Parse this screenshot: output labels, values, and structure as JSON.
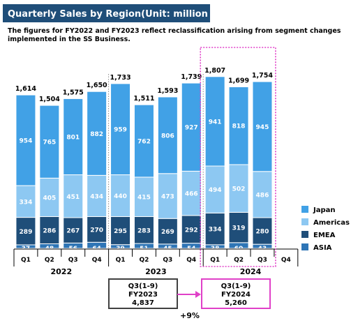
{
  "header": {
    "title": "Quarterly Sales by Region(Unit: million yen)",
    "note_line1": "The figures for FY2022 and FY2023 reflect reclassification arising from segment changes",
    "note_line2": "implemented in the SS Business."
  },
  "chart_data": {
    "type": "bar",
    "stacked": true,
    "title": "Quarterly Sales by Region(Unit: million yen)",
    "categories": [
      "Q1",
      "Q2",
      "Q3",
      "Q4",
      "Q1",
      "Q2",
      "Q3",
      "Q4",
      "Q1",
      "Q2",
      "Q3",
      "Q4"
    ],
    "years": [
      {
        "label": "2022",
        "start": 0,
        "end": 3
      },
      {
        "label": "2023",
        "start": 4,
        "end": 7
      },
      {
        "label": "2024",
        "start": 8,
        "end": 11
      }
    ],
    "totals": [
      1614,
      1504,
      1575,
      1650,
      1733,
      1511,
      1593,
      1739,
      1807,
      1699,
      1754,
      null
    ],
    "total_labels": [
      "1,614",
      "1,504",
      "1,575",
      "1,650",
      "1,733",
      "1,511",
      "1,593",
      "1,739",
      "1,807",
      "1,699",
      "1,754",
      ""
    ],
    "series": [
      {
        "name": "ASIA",
        "color": "#2e75b6",
        "values": [
          37,
          48,
          56,
          64,
          39,
          51,
          45,
          54,
          38,
          60,
          43,
          null
        ]
      },
      {
        "name": "EMEA",
        "color": "#1f4e79",
        "values": [
          289,
          286,
          267,
          270,
          295,
          283,
          269,
          292,
          334,
          319,
          280,
          null
        ]
      },
      {
        "name": "Americas",
        "color": "#8dc8f2",
        "values": [
          334,
          405,
          451,
          434,
          440,
          415,
          473,
          466,
          494,
          502,
          486,
          null
        ]
      },
      {
        "name": "Japan",
        "color": "#41a1e6",
        "values": [
          954,
          765,
          801,
          882,
          959,
          762,
          806,
          927,
          941,
          818,
          945,
          null
        ]
      }
    ],
    "legend_order": [
      "Japan",
      "Americas",
      "EMEA",
      "ASIA"
    ],
    "legend_position": "right",
    "highlight_color": "#e040c8",
    "comparison": {
      "left": {
        "line1": "Q3(1-9)",
        "line2": "FY2023",
        "line3": "4,837"
      },
      "right": {
        "line1": "Q3(1-9)",
        "line2": "FY2024",
        "line3": "5,260"
      },
      "change": "+9%"
    }
  }
}
